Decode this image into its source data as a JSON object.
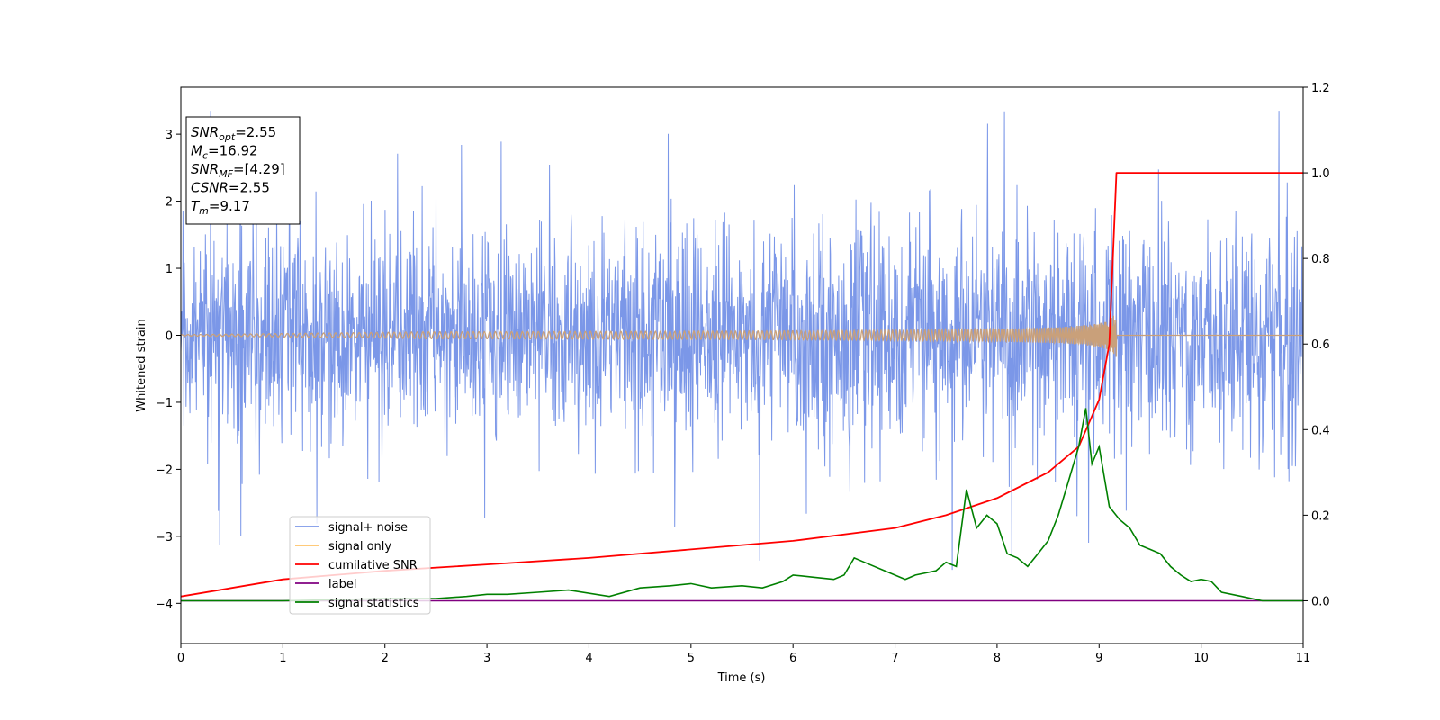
{
  "chart_data": {
    "type": "line",
    "xlabel": "Time (s)",
    "ylabel": "Whitened strain",
    "xlim": [
      0,
      11
    ],
    "ylim_left": [
      -4.6,
      3.7
    ],
    "ylim_right": [
      -0.1,
      1.2
    ],
    "x_ticks": [
      "0",
      "1",
      "2",
      "3",
      "4",
      "5",
      "6",
      "7",
      "8",
      "9",
      "10",
      "11"
    ],
    "y_left_ticks": [
      "−4",
      "−3",
      "−2",
      "−1",
      "0",
      "1",
      "2",
      "3"
    ],
    "y_right_ticks": [
      "0.0",
      "0.2",
      "0.4",
      "0.6",
      "0.8",
      "1.0",
      "1.2"
    ],
    "info_box": [
      {
        "sym": "SNR",
        "sub": "opt",
        "rest": "=2.55"
      },
      {
        "sym": "M",
        "sub": "c",
        "rest": "=16.92"
      },
      {
        "sym": "SNR",
        "sub": "MF",
        "rest": "=[4.29]"
      },
      {
        "sym": "CSNR",
        "sub": "",
        "rest": "=2.55"
      },
      {
        "sym": "T",
        "sub": "m",
        "rest": "=9.17"
      }
    ],
    "legend": {
      "placement": "lower-left",
      "entries": [
        "signal+ noise",
        "signal only",
        "cumilative SNR",
        "label",
        "signal statistics"
      ]
    },
    "colors": {
      "signal_noise": "#7b97e8",
      "signal_only": "#ffc266",
      "cumulative_snr": "#ff0000",
      "label": "#800080",
      "signal_statistics": "#008000",
      "signal_overlap": "#c9a07a"
    },
    "series": [
      {
        "name": "signal+ noise",
        "axis": "left",
        "description_values": {
          "typical_abs_max": 1.6,
          "peak_max": 3.35,
          "peak_min": -3.5
        }
      },
      {
        "name": "signal only",
        "axis": "left",
        "chirp": {
          "merger_time": 9.17,
          "peak_amplitude": 0.4
        }
      },
      {
        "name": "cumilative SNR",
        "axis": "right",
        "x": [
          0,
          1,
          2,
          3,
          4,
          5,
          6,
          7,
          7.5,
          8,
          8.5,
          8.8,
          9.0,
          9.1,
          9.17,
          11
        ],
        "y": [
          0.01,
          0.05,
          0.07,
          0.085,
          0.1,
          0.12,
          0.14,
          0.17,
          0.2,
          0.24,
          0.3,
          0.36,
          0.47,
          0.6,
          1.0,
          1.0
        ]
      },
      {
        "name": "label",
        "axis": "right",
        "x": [
          0,
          11
        ],
        "y": [
          0,
          0
        ]
      },
      {
        "name": "signal statistics",
        "axis": "right",
        "x": [
          0,
          1,
          2,
          2.5,
          2.8,
          3,
          3.2,
          3.5,
          3.8,
          4.2,
          4.5,
          4.8,
          5,
          5.2,
          5.5,
          5.7,
          5.9,
          6.0,
          6.2,
          6.4,
          6.5,
          6.6,
          6.7,
          6.9,
          7.1,
          7.2,
          7.4,
          7.5,
          7.6,
          7.7,
          7.8,
          7.9,
          8.0,
          8.1,
          8.2,
          8.3,
          8.4,
          8.5,
          8.6,
          8.7,
          8.8,
          8.87,
          8.93,
          9.0,
          9.1,
          9.2,
          9.3,
          9.4,
          9.5,
          9.6,
          9.7,
          9.8,
          9.9,
          10.0,
          10.1,
          10.2,
          10.4,
          10.6,
          10.8,
          11.0
        ],
        "y": [
          0.0,
          0.0,
          0.005,
          0.005,
          0.01,
          0.015,
          0.015,
          0.02,
          0.025,
          0.01,
          0.03,
          0.035,
          0.04,
          0.03,
          0.035,
          0.03,
          0.045,
          0.06,
          0.055,
          0.05,
          0.06,
          0.1,
          0.09,
          0.07,
          0.05,
          0.06,
          0.07,
          0.09,
          0.08,
          0.26,
          0.17,
          0.2,
          0.18,
          0.11,
          0.1,
          0.08,
          0.11,
          0.14,
          0.2,
          0.28,
          0.36,
          0.45,
          0.32,
          0.36,
          0.22,
          0.19,
          0.17,
          0.13,
          0.12,
          0.11,
          0.08,
          0.06,
          0.045,
          0.05,
          0.045,
          0.02,
          0.01,
          0.0,
          0.0,
          0.0
        ]
      }
    ]
  }
}
